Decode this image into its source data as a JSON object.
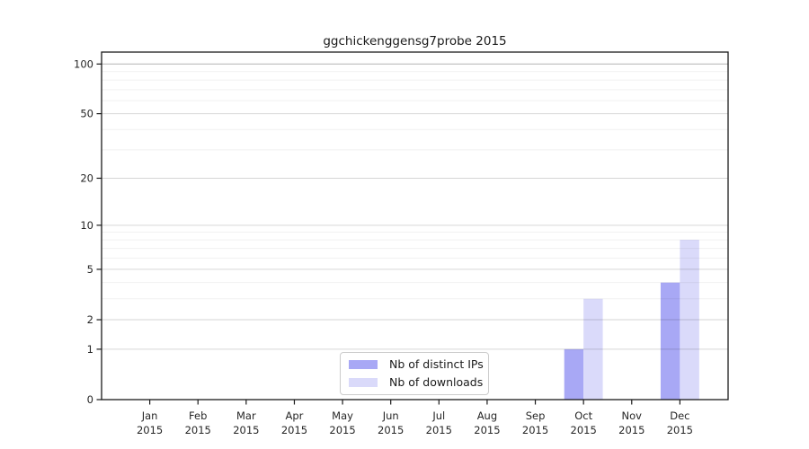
{
  "figure": {
    "title": "ggchickenggensg7probe 2015",
    "background": "#ffffff",
    "axis_color": "#1a1a1a",
    "tick_label_color": "#262626"
  },
  "legend": {
    "items": [
      {
        "label": "Nb of distinct IPs",
        "color": "#a8a8f5"
      },
      {
        "label": "Nb of downloads",
        "color": "#dadafa"
      }
    ]
  },
  "chart_data": {
    "type": "bar",
    "title": "ggchickenggensg7probe 2015",
    "categories": [
      "Jan",
      "Feb",
      "Mar",
      "Apr",
      "May",
      "Jun",
      "Jul",
      "Aug",
      "Sep",
      "Oct",
      "Nov",
      "Dec"
    ],
    "category_year": "2015",
    "series": [
      {
        "name": "Nb of distinct IPs",
        "color": "#a8a8f5",
        "values": [
          0,
          0,
          0,
          0,
          0,
          0,
          0,
          0,
          0,
          1,
          0,
          4
        ]
      },
      {
        "name": "Nb of downloads",
        "color": "#dadafa",
        "values": [
          0,
          0,
          0,
          0,
          0,
          0,
          0,
          0,
          0,
          3,
          0,
          8
        ]
      }
    ],
    "xlabel": "",
    "ylabel": "",
    "yscale": "log1p",
    "ylim": [
      0,
      118
    ],
    "yticks": [
      0,
      1,
      2,
      5,
      10,
      20,
      50,
      100
    ],
    "minor_gridlines": [
      3,
      4,
      6,
      7,
      8,
      9,
      30,
      40,
      60,
      70,
      80,
      90
    ],
    "grid": true,
    "legend_position": "lower center (inside plot)"
  }
}
